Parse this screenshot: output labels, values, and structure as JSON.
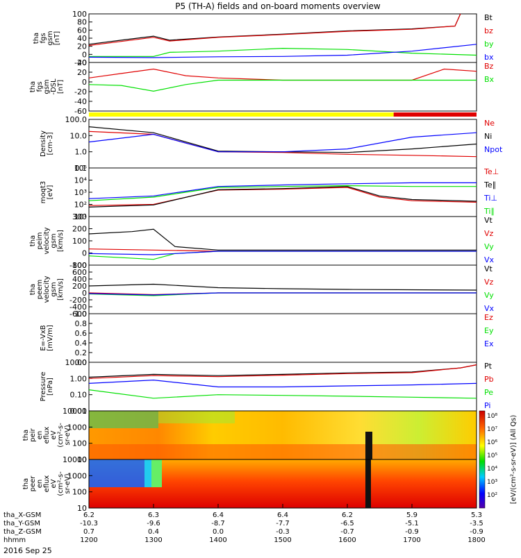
{
  "title": "P5 (TH-A) fields and on-board moments overview",
  "date_label": "2016 Sep 25",
  "colors": {
    "black": "#000000",
    "red": "#e00000",
    "green": "#00e000",
    "blue": "#0000ff",
    "yellow": "#ffff00"
  },
  "panels": [
    {
      "ylabel": [
        "tha",
        "fgs",
        "gsm",
        "[nT]"
      ],
      "ticks": [
        "100",
        "80",
        "60",
        "40",
        "20",
        "0",
        "-20"
      ],
      "legend": [
        "Bt",
        "bz",
        "by",
        "bx"
      ],
      "legend_colors": [
        "black",
        "red",
        "green",
        "blue"
      ]
    },
    {
      "ylabel": [
        "tha",
        "fgs",
        "gsm",
        "-DSL",
        "[nT]"
      ],
      "ticks": [
        "40",
        "20",
        "0",
        "-20",
        "-40",
        "-60"
      ],
      "legend": [
        "Bz",
        "Bx"
      ],
      "legend_colors": [
        "red",
        "green"
      ]
    },
    {
      "ylabel": [
        "Density",
        "[cm-3]"
      ],
      "ticks": [
        "100.0",
        "10.0",
        "1.0",
        "0.1"
      ],
      "legend": [
        "Ne",
        "Ni",
        "Npot"
      ],
      "legend_colors": [
        "red",
        "black",
        "blue"
      ]
    },
    {
      "ylabel": [
        "moqt3",
        "[eV]"
      ],
      "ticks": [
        "10⁵",
        "10⁴",
        "10³",
        "10²",
        "10¹"
      ],
      "legend": [
        "Te⊥",
        "Te∥",
        "Ti⊥",
        "Ti∥"
      ],
      "legend_colors": [
        "red",
        "black",
        "blue",
        "green"
      ]
    },
    {
      "ylabel": [
        "tha",
        "peim",
        "velocity",
        "gsm",
        "[km/s]"
      ],
      "ticks": [
        "300",
        "200",
        "100",
        "0",
        "-100"
      ],
      "legend": [
        "Vt",
        "Vz",
        "Vy",
        "Vx"
      ],
      "legend_colors": [
        "black",
        "red",
        "green",
        "blue"
      ]
    },
    {
      "ylabel": [
        "tha",
        "peem",
        "velocity",
        "gsm",
        "[km/s]"
      ],
      "ticks": [
        "800",
        "600",
        "400",
        "200",
        "0",
        "-200",
        "-400",
        "-600"
      ],
      "legend": [
        "Vt",
        "Vz",
        "Vy",
        "Vx"
      ],
      "legend_colors": [
        "black",
        "red",
        "green",
        "blue"
      ]
    },
    {
      "ylabel": [
        "E=-VxB",
        "[mV/m]"
      ],
      "ticks": [
        "1.0",
        "0.8",
        "0.6",
        "0.4",
        "0.2",
        "0.0"
      ],
      "legend": [
        "Ez",
        "Ey",
        "Ex"
      ],
      "legend_colors": [
        "red",
        "green",
        "blue"
      ]
    },
    {
      "ylabel": [
        "Pressure",
        "[nPa]"
      ],
      "ticks": [
        "10.00",
        "1.00",
        "0.10",
        "0.01"
      ],
      "legend": [
        "Pt",
        "Pb",
        "Pe",
        "Pi"
      ],
      "legend_colors": [
        "black",
        "red",
        "green",
        "blue"
      ]
    },
    {
      "ylabel": [
        "tha",
        "peir",
        "en",
        "eflux",
        "eV",
        "(cm²-s-",
        "sr-eV)"
      ],
      "ticks": [
        "10000",
        "1000",
        "100",
        "10"
      ],
      "legend": [],
      "legend_colors": []
    },
    {
      "ylabel": [
        "tha",
        "peer",
        "en",
        "eflux",
        "eV",
        "(cm²-s-",
        "sr-eV)"
      ],
      "ticks": [
        "10000",
        "1000",
        "100",
        "10"
      ],
      "legend": [],
      "legend_colors": []
    }
  ],
  "colorbar": {
    "ticks": [
      "10⁸",
      "10⁷",
      "10⁶",
      "10⁵",
      "10⁴",
      "10³",
      "10²"
    ],
    "label": "[eV/(cm²-s-sr-eV)] (All Qs)"
  },
  "x_axis": {
    "row_labels": [
      "tha_X-GSM",
      "tha_Y-GSM",
      "tha_Z-GSM",
      "hhmm"
    ],
    "rows": [
      [
        "6.2",
        "6.3",
        "6.4",
        "6.4",
        "6.2",
        "5.9",
        "5.3"
      ],
      [
        "-10.3",
        "-9.6",
        "-8.7",
        "-7.7",
        "-6.5",
        "-5.1",
        "-3.5"
      ],
      [
        "0.7",
        "0.4",
        "0.0",
        "-0.3",
        "-0.7",
        "-0.9",
        "-0.9"
      ],
      [
        "1200",
        "1300",
        "1400",
        "1500",
        "1600",
        "1700",
        "1800"
      ]
    ]
  },
  "chart_data": {
    "type": "line",
    "title": "P5 (TH-A) fields and on-board moments overview",
    "x_label": "hhmm",
    "x_ticks": [
      "1200",
      "1300",
      "1400",
      "1500",
      "1600",
      "1700",
      "1800"
    ],
    "time_range": [
      "1200",
      "1800"
    ],
    "mode_bar": [
      {
        "from": "1200",
        "to": "1643",
        "color": "yellow"
      },
      {
        "from": "1643",
        "to": "1800",
        "color": "red"
      }
    ],
    "panels": [
      {
        "name": "fgs gsm [nT]",
        "ylim": [
          -20,
          100
        ],
        "series": [
          {
            "name": "Bt",
            "color": "black",
            "x": [
              "1200",
              "1230",
              "1300",
              "1315",
              "1400",
              "1500",
              "1600",
              "1700",
              "1740",
              "1745"
            ],
            "y": [
              25,
              35,
              45,
              35,
              43,
              50,
              58,
              63,
              70,
              100
            ]
          },
          {
            "name": "bz",
            "color": "red",
            "x": [
              "1200",
              "1230",
              "1300",
              "1315",
              "1400",
              "1500",
              "1600",
              "1700",
              "1740",
              "1745"
            ],
            "y": [
              22,
              32,
              42,
              33,
              42,
              49,
              57,
              62,
              70,
              100
            ]
          },
          {
            "name": "by",
            "color": "green",
            "x": [
              "1200",
              "1300",
              "1315",
              "1400",
              "1500",
              "1600",
              "1700",
              "1800"
            ],
            "y": [
              -5,
              -5,
              5,
              8,
              15,
              12,
              3,
              -2
            ]
          },
          {
            "name": "bx",
            "color": "blue",
            "x": [
              "1200",
              "1300",
              "1400",
              "1500",
              "1600",
              "1700",
              "1800"
            ],
            "y": [
              -7,
              -8,
              -6,
              -5,
              -2,
              8,
              25
            ]
          }
        ]
      },
      {
        "name": "fgs gsm-DSL [nT]",
        "ylim": [
          -70,
          40
        ],
        "series": [
          {
            "name": "Bz",
            "color": "red",
            "x": [
              "1200",
              "1230",
              "1300",
              "1330",
              "1400",
              "1500",
              "1600",
              "1700",
              "1730",
              "1800"
            ],
            "y": [
              5,
              15,
              25,
              10,
              5,
              0,
              0,
              0,
              25,
              20
            ]
          },
          {
            "name": "Bx",
            "color": "green",
            "x": [
              "1200",
              "1230",
              "1300",
              "1330",
              "1400",
              "1500",
              "1600",
              "1800"
            ],
            "y": [
              -10,
              -12,
              -25,
              -10,
              0,
              0,
              0,
              0
            ]
          }
        ]
      },
      {
        "name": "Density [cm-3]",
        "scale": "log",
        "ylim": [
          0.1,
          100
        ],
        "series": [
          {
            "name": "Ne",
            "color": "red",
            "x": [
              "1200",
              "1300",
              "1400",
              "1500",
              "1600",
              "1700",
              "1800"
            ],
            "y": [
              18,
              12,
              1.0,
              0.9,
              0.7,
              0.6,
              0.5
            ]
          },
          {
            "name": "Ni",
            "color": "black",
            "x": [
              "1200",
              "1300",
              "1400",
              "1500",
              "1600",
              "1700",
              "1800"
            ],
            "y": [
              35,
              15,
              1.1,
              1.0,
              0.9,
              1.5,
              3.0
            ]
          },
          {
            "name": "Npot",
            "color": "blue",
            "x": [
              "1200",
              "1300",
              "1400",
              "1500",
              "1600",
              "1700",
              "1800"
            ],
            "y": [
              4,
              12,
              1.0,
              1.0,
              1.5,
              8,
              15
            ]
          }
        ]
      },
      {
        "name": "moqt3 [eV]",
        "scale": "log",
        "ylim": [
          10,
          100000
        ],
        "series": [
          {
            "name": "Te⊥",
            "color": "red",
            "x": [
              "1200",
              "1300",
              "1400",
              "1500",
              "1600",
              "1630",
              "1700",
              "1800"
            ],
            "y": [
              80,
              100,
              1500,
              1800,
              2500,
              400,
              200,
              150
            ]
          },
          {
            "name": "Te∥",
            "color": "black",
            "x": [
              "1200",
              "1300",
              "1400",
              "1500",
              "1600",
              "1630",
              "1700",
              "1800"
            ],
            "y": [
              60,
              90,
              1600,
              2000,
              3000,
              500,
              250,
              180
            ]
          },
          {
            "name": "Ti⊥",
            "color": "blue",
            "x": [
              "1200",
              "1300",
              "1400",
              "1500",
              "1600",
              "1700",
              "1800"
            ],
            "y": [
              300,
              500,
              3000,
              4000,
              5000,
              6000,
              6000
            ]
          },
          {
            "name": "Ti∥",
            "color": "green",
            "x": [
              "1200",
              "1300",
              "1400",
              "1500",
              "1600",
              "1700",
              "1800"
            ],
            "y": [
              200,
              400,
              2500,
              3000,
              3500,
              3000,
              3000
            ]
          }
        ]
      },
      {
        "name": "peim velocity gsm [km/s]",
        "ylim": [
          -120,
          300
        ],
        "series": [
          {
            "name": "Vt",
            "color": "black",
            "x": [
              "1200",
              "1240",
              "1300",
              "1320",
              "1400",
              "1800"
            ],
            "y": [
              150,
              170,
              190,
              40,
              10,
              10
            ]
          },
          {
            "name": "Vz",
            "color": "red",
            "x": [
              "1200",
              "1300",
              "1400",
              "1800"
            ],
            "y": [
              20,
              10,
              0,
              0
            ]
          },
          {
            "name": "Vy",
            "color": "green",
            "x": [
              "1200",
              "1300",
              "1320",
              "1400",
              "1800"
            ],
            "y": [
              -40,
              -70,
              -20,
              0,
              0
            ]
          },
          {
            "name": "Vx",
            "color": "blue",
            "x": [
              "1200",
              "1300",
              "1400",
              "1800"
            ],
            "y": [
              -20,
              -30,
              0,
              0
            ]
          }
        ]
      },
      {
        "name": "peem velocity gsm [km/s]",
        "ylim": [
          -600,
          800
        ],
        "series": [
          {
            "name": "Vt",
            "color": "black",
            "x": [
              "1200",
              "1300",
              "1400",
              "1500",
              "1600",
              "1800"
            ],
            "y": [
              200,
              250,
              150,
              120,
              100,
              80
            ]
          },
          {
            "name": "Vz",
            "color": "red",
            "x": [
              "1200",
              "1300",
              "1400",
              "1800"
            ],
            "y": [
              0,
              -50,
              0,
              0
            ]
          },
          {
            "name": "Vy",
            "color": "green",
            "x": [
              "1200",
              "1300",
              "1400",
              "1800"
            ],
            "y": [
              -30,
              -80,
              0,
              0
            ]
          },
          {
            "name": "Vx",
            "color": "blue",
            "x": [
              "1200",
              "1300",
              "1400",
              "1800"
            ],
            "y": [
              -20,
              -60,
              0,
              0
            ]
          }
        ]
      },
      {
        "name": "E=-VxB [mV/m]",
        "ylim": [
          0,
          1
        ],
        "series": []
      },
      {
        "name": "Pressure [nPa]",
        "scale": "log",
        "ylim": [
          0.01,
          10
        ],
        "series": [
          {
            "name": "Pt",
            "color": "black",
            "x": [
              "1200",
              "1300",
              "1400",
              "1500",
              "1600",
              "1700",
              "1745",
              "1800"
            ],
            "y": [
              1.2,
              1.8,
              1.5,
              1.8,
              2.2,
              2.5,
              4.5,
              7.0
            ]
          },
          {
            "name": "Pb",
            "color": "red",
            "x": [
              "1200",
              "1300",
              "1400",
              "1500",
              "1600",
              "1700",
              "1745",
              "1800"
            ],
            "y": [
              1.0,
              1.5,
              1.3,
              1.6,
              2.0,
              2.3,
              4.5,
              7.0
            ]
          },
          {
            "name": "Pe",
            "color": "green",
            "x": [
              "1200",
              "1300",
              "1400",
              "1500",
              "1600",
              "1700",
              "1800"
            ],
            "y": [
              0.2,
              0.06,
              0.1,
              0.09,
              0.08,
              0.07,
              0.06
            ]
          },
          {
            "name": "Pi",
            "color": "blue",
            "x": [
              "1200",
              "1300",
              "1400",
              "1500",
              "1600",
              "1700",
              "1800"
            ],
            "y": [
              0.5,
              0.8,
              0.3,
              0.3,
              0.35,
              0.4,
              0.5
            ]
          }
        ]
      },
      {
        "name": "peir en eflux",
        "type": "heatmap",
        "scale": "log",
        "ylim": [
          5,
          20000
        ]
      },
      {
        "name": "peer en eflux",
        "type": "heatmap",
        "scale": "log",
        "ylim": [
          5,
          20000
        ]
      }
    ]
  }
}
